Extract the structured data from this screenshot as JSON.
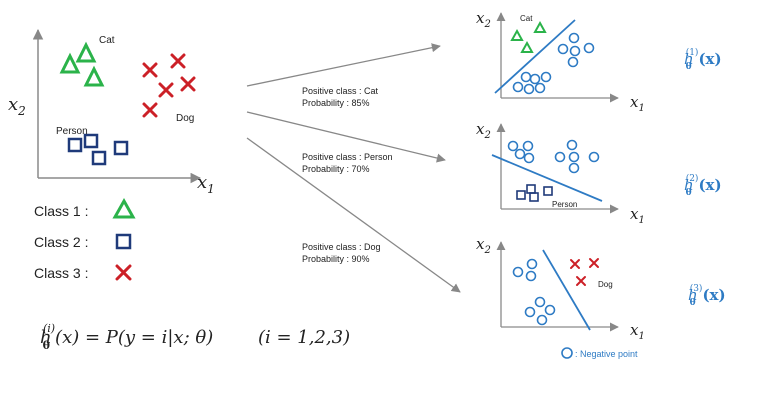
{
  "colors": {
    "cat": "#2bb34a",
    "person": "#1f3a7a",
    "dog": "#cc2027",
    "negative": "#2e7bc4",
    "axis": "#8a8a8a",
    "arrow": "#888888",
    "hypothesis": "#2e7bc4"
  },
  "main_plot": {
    "x_label": "x",
    "x_sub": "1",
    "y_label": "x",
    "y_sub": "2",
    "cat_label": "Cat",
    "dog_label": "Dog",
    "person_label": "Person"
  },
  "legend": {
    "class1": "Class 1 :",
    "class2": "Class 2 :",
    "class3": "Class 3 :",
    "class1_icon": "triangle-icon",
    "class2_icon": "square-icon",
    "class3_icon": "cross-icon"
  },
  "formula": {
    "h": "h",
    "theta": "θ",
    "sup": "(i)",
    "body": "(x) = P(y = i|x; θ)",
    "range": "(i = 1,2,3)"
  },
  "arrows": [
    {
      "line1": "Positive class : Cat",
      "line2": "Probability : 85%"
    },
    {
      "line1": "Positive class : Person",
      "line2": "Probability : 70%"
    },
    {
      "line1": "Positive class : Dog",
      "line2": "Probability : 90%"
    }
  ],
  "panels": [
    {
      "x_label": "x",
      "x_sub": "1",
      "y_label": "x",
      "y_sub": "2",
      "class_label": "Cat",
      "h": "h",
      "theta": "θ",
      "sup": "(1)",
      "arg": "(x)"
    },
    {
      "x_label": "x",
      "x_sub": "1",
      "y_label": "x",
      "y_sub": "2",
      "class_label": "Person",
      "h": "h",
      "theta": "θ",
      "sup": "(2)",
      "arg": "(x)"
    },
    {
      "x_label": "x",
      "x_sub": "1",
      "y_label": "x",
      "y_sub": "2",
      "class_label": "Dog",
      "h": "h",
      "theta": "θ",
      "sup": "(3)",
      "arg": "(x)"
    }
  ],
  "negative_note": ": Negative point",
  "negative_icon": "circle-icon"
}
